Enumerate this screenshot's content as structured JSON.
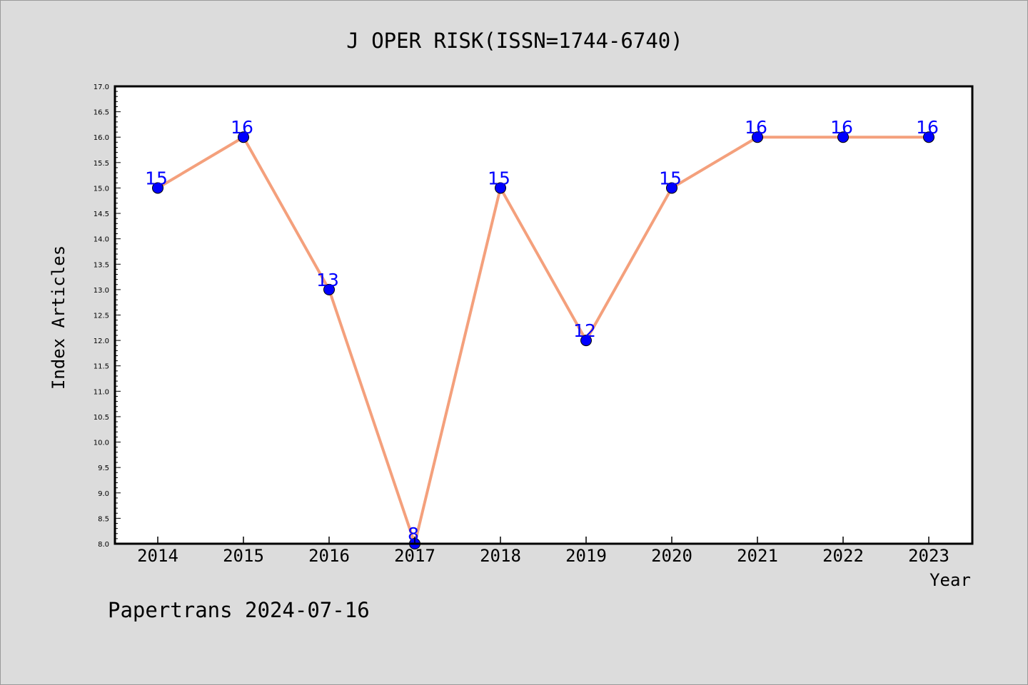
{
  "chart_data": {
    "type": "line",
    "title": "J OPER RISK(ISSN=1744-6740)",
    "xlabel": "Year",
    "ylabel": "Index Articles",
    "categories": [
      "2014",
      "2015",
      "2016",
      "2017",
      "2018",
      "2019",
      "2020",
      "2021",
      "2022",
      "2023"
    ],
    "values": [
      15,
      16,
      13,
      8,
      15,
      12,
      15,
      16,
      16,
      16
    ],
    "data_labels": [
      "15",
      "16",
      "13",
      "8",
      "15",
      "12",
      "15",
      "16",
      "16",
      "16"
    ],
    "ylim": [
      8.0,
      17.0
    ],
    "y_ticks": [
      "8.0",
      "8.5",
      "9.0",
      "9.5",
      "10.0",
      "10.5",
      "11.0",
      "11.5",
      "12.0",
      "12.5",
      "13.0",
      "13.5",
      "14.0",
      "14.5",
      "15.0",
      "15.5",
      "16.0",
      "16.5",
      "17.0"
    ],
    "grid": false,
    "legend": "none",
    "colors": {
      "line": "#f4a07c",
      "marker": "#0000ff",
      "data_label": "#0000ff",
      "plot_background": "#ffffff",
      "figure_background": "#dcdcdc"
    }
  },
  "footer": {
    "watermark": "Papertrans 2024-07-16"
  }
}
